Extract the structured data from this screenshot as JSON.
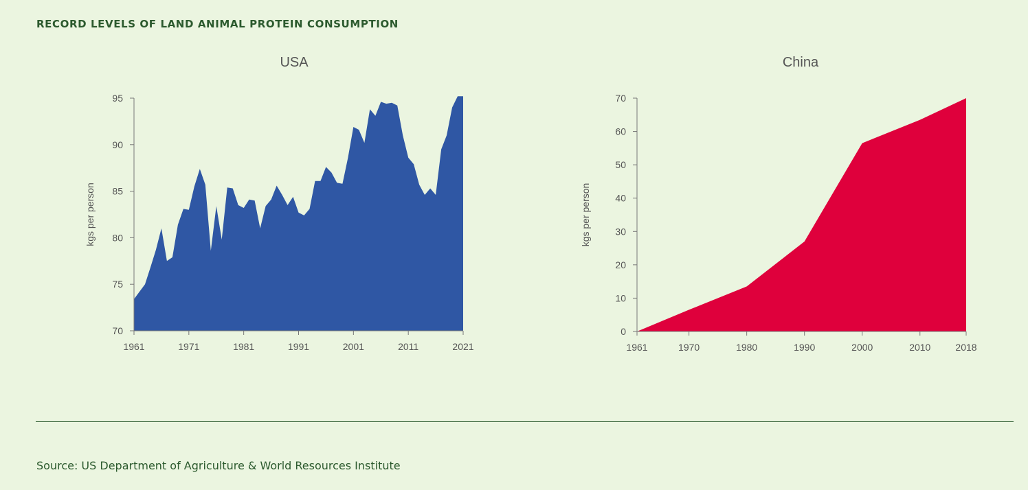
{
  "header": {
    "title": "RECORD LEVELS OF LAND ANIMAL PROTEIN CONSUMPTION"
  },
  "footer": {
    "source": "Source: US Department of Agriculture & World Resources Institute"
  },
  "colors": {
    "usa_fill": "#2f57a4",
    "china_fill": "#df003c",
    "text": "#2c5a2e",
    "axis": "#777777"
  },
  "chart_data": [
    {
      "type": "area",
      "title": "USA",
      "ylabel": "kgs per person",
      "xlabel": "",
      "xlim": [
        1961,
        2021
      ],
      "ylim": [
        70,
        95
      ],
      "xticks": [
        1961,
        1971,
        1981,
        1991,
        2001,
        2011,
        2021
      ],
      "yticks": [
        70,
        75,
        80,
        85,
        90,
        95
      ],
      "color": "#2f57a4",
      "x": [
        1961,
        1962,
        1963,
        1964,
        1965,
        1966,
        1967,
        1968,
        1969,
        1970,
        1971,
        1972,
        1973,
        1974,
        1975,
        1976,
        1977,
        1978,
        1979,
        1980,
        1981,
        1982,
        1983,
        1984,
        1985,
        1986,
        1987,
        1988,
        1989,
        1990,
        1991,
        1992,
        1993,
        1994,
        1995,
        1996,
        1997,
        1998,
        1999,
        2000,
        2001,
        2002,
        2003,
        2004,
        2005,
        2006,
        2007,
        2008,
        2009,
        2010,
        2011,
        2012,
        2013,
        2014,
        2015,
        2016,
        2017,
        2018,
        2019,
        2020,
        2021
      ],
      "y": [
        73.4,
        74.2,
        75.0,
        76.8,
        78.7,
        81.0,
        77.5,
        77.9,
        81.4,
        83.1,
        83.0,
        85.5,
        87.4,
        85.7,
        78.6,
        83.4,
        79.8,
        85.4,
        85.3,
        83.5,
        83.2,
        84.1,
        84.0,
        81.0,
        83.4,
        84.1,
        85.6,
        84.6,
        83.5,
        84.4,
        82.7,
        82.4,
        83.1,
        86.1,
        86.1,
        87.6,
        87.0,
        85.9,
        85.8,
        88.6,
        91.9,
        91.6,
        90.2,
        93.8,
        93.1,
        94.6,
        94.4,
        94.5,
        94.2,
        91.0,
        88.6,
        87.9,
        85.7,
        84.6,
        85.3,
        84.6,
        89.5,
        91.0,
        94.0,
        95.2,
        95.2
      ]
    },
    {
      "type": "area",
      "title": "China",
      "ylabel": "kgs per person",
      "xlabel": "",
      "xlim": [
        1961,
        2018
      ],
      "ylim": [
        0,
        70
      ],
      "xticks": [
        1961,
        1970,
        1980,
        1990,
        2000,
        2010,
        2018
      ],
      "yticks": [
        0,
        10,
        20,
        30,
        40,
        50,
        60,
        70
      ],
      "color": "#df003c",
      "x": [
        1961,
        1970,
        1980,
        1990,
        2000,
        2010,
        2018
      ],
      "y": [
        0,
        6.5,
        13.5,
        27,
        56.5,
        63.5,
        70
      ]
    }
  ]
}
